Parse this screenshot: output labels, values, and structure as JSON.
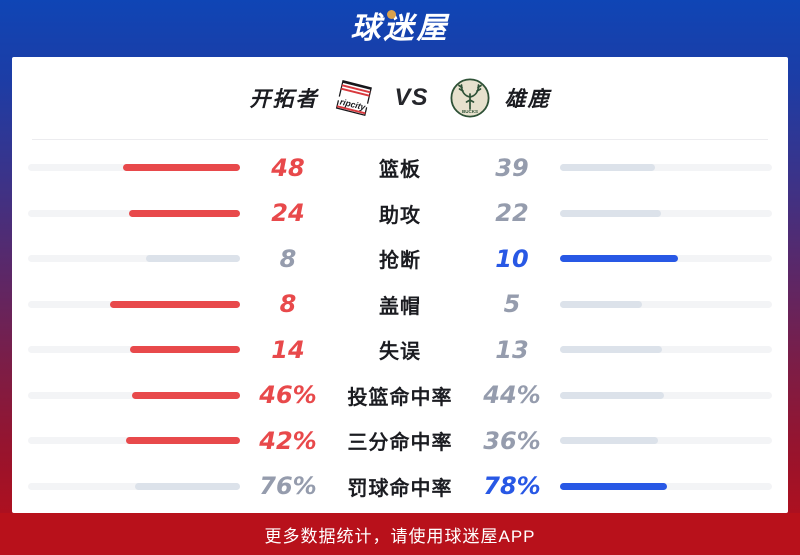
{
  "header": {
    "logo_text": "球迷屋"
  },
  "matchup": {
    "home_team": "开拓者",
    "vs_label": "VS",
    "away_team": "雄鹿",
    "home_logo_text": "ripcity",
    "away_logo_text": "BUCKS"
  },
  "colors": {
    "home": "#e8494b",
    "away": "#2858e5",
    "neutral_fill": "#dce2ea",
    "track": "#f3f4f6",
    "value_muted": "#959cad",
    "footer_bg": "#b8111b",
    "logo_dot_gold": "#d9a14b"
  },
  "stats": [
    {
      "label": "篮板",
      "home": "48",
      "away": "39",
      "home_pct": 55.2,
      "away_pct": 44.8,
      "leader": "home"
    },
    {
      "label": "助攻",
      "home": "24",
      "away": "22",
      "home_pct": 52.2,
      "away_pct": 47.8,
      "leader": "home"
    },
    {
      "label": "抢断",
      "home": "8",
      "away": "10",
      "home_pct": 44.4,
      "away_pct": 55.6,
      "leader": "away"
    },
    {
      "label": "盖帽",
      "home": "8",
      "away": "5",
      "home_pct": 61.5,
      "away_pct": 38.5,
      "leader": "home"
    },
    {
      "label": "失误",
      "home": "14",
      "away": "13",
      "home_pct": 51.9,
      "away_pct": 48.1,
      "leader": "home"
    },
    {
      "label": "投篮命中率",
      "home": "46%",
      "away": "44%",
      "home_pct": 51.1,
      "away_pct": 48.9,
      "leader": "home"
    },
    {
      "label": "三分命中率",
      "home": "42%",
      "away": "36%",
      "home_pct": 53.8,
      "away_pct": 46.2,
      "leader": "home"
    },
    {
      "label": "罚球命中率",
      "home": "76%",
      "away": "78%",
      "home_pct": 49.4,
      "away_pct": 50.6,
      "leader": "away"
    }
  ],
  "chart_data": {
    "type": "bar",
    "orientation": "horizontal-mirrored",
    "title": "开拓者 VS 雄鹿",
    "categories": [
      "篮板",
      "助攻",
      "抢断",
      "盖帽",
      "失误",
      "投篮命中率",
      "三分命中率",
      "罚球命中率"
    ],
    "series": [
      {
        "name": "开拓者",
        "values": [
          48,
          24,
          8,
          8,
          14,
          46,
          42,
          76
        ]
      },
      {
        "name": "雄鹿",
        "values": [
          39,
          22,
          10,
          5,
          13,
          44,
          36,
          78
        ]
      }
    ],
    "units": [
      "count",
      "count",
      "count",
      "count",
      "count",
      "percent",
      "percent",
      "percent"
    ],
    "legend_position": "top",
    "note": "bar length = value / (home value + away value); leading side colored (home red / away blue), trailing side gray"
  },
  "footer": {
    "text": "更多数据统计，请使用球迷屋APP"
  }
}
